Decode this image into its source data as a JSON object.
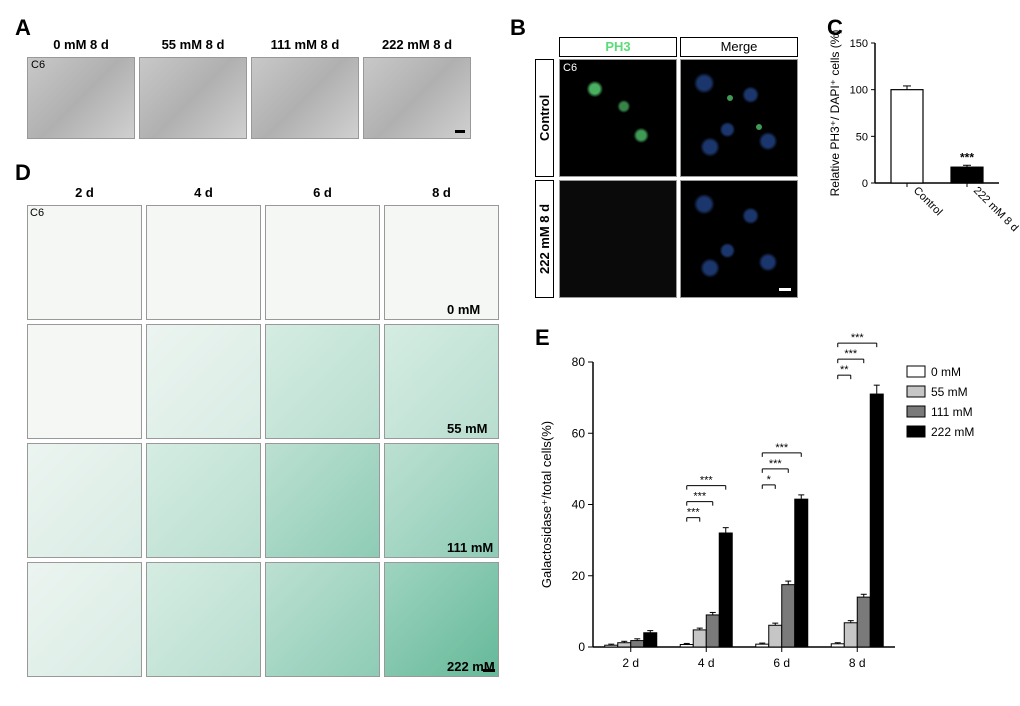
{
  "panelA": {
    "label": "A",
    "cell_line": "C6",
    "conditions": [
      "0 mM  8 d",
      "55 mM  8 d",
      "111 mM  8 d",
      "222 mM  8 d"
    ],
    "image_bg": "#c0c0c0",
    "label_fontsize": 13
  },
  "panelB": {
    "label": "B",
    "cell_line": "C6",
    "col_headers": [
      "PH3",
      "Merge"
    ],
    "ph3_color": "#5cdc78",
    "row_labels": [
      "Control",
      "222 mM  8 d"
    ],
    "bg": "#000000"
  },
  "panelC": {
    "label": "C",
    "type": "bar",
    "ylabel": "Relative PH3⁺/ DAPI⁺ cells (%)",
    "ylim": [
      0,
      150
    ],
    "yticks": [
      0,
      50,
      100,
      150
    ],
    "categories": [
      "Control",
      "222 mM  8 d"
    ],
    "values": [
      100,
      17
    ],
    "errors": [
      4,
      2
    ],
    "bar_colors": [
      "#ffffff",
      "#000000"
    ],
    "bar_border": "#000000",
    "sig_label": "***",
    "label_fontsize": 12,
    "tick_fontsize": 11
  },
  "panelD": {
    "label": "D",
    "cell_line": "C6",
    "col_headers": [
      "2 d",
      "4 d",
      "6 d",
      "8 d"
    ],
    "row_labels": [
      "0 mM",
      "55 mM",
      "111 mM",
      "222 mM"
    ],
    "intensity_map": [
      [
        0,
        0,
        0,
        0
      ],
      [
        0,
        1,
        2,
        2
      ],
      [
        1,
        2,
        3,
        3
      ],
      [
        1,
        2,
        3,
        4
      ]
    ],
    "stain_colors": [
      "#f5f7f5",
      "#d8ece4",
      "#b8ded0",
      "#8eccb6",
      "#66b99a"
    ]
  },
  "panelE": {
    "label": "E",
    "type": "grouped-bar",
    "ylabel": "Galactosidase⁺/total cells(%)",
    "ylim": [
      0,
      80
    ],
    "yticks": [
      0,
      20,
      40,
      60,
      80
    ],
    "x_groups": [
      "2 d",
      "4 d",
      "6 d",
      "8 d"
    ],
    "series": [
      {
        "name": "0 mM",
        "color": "#ffffff",
        "values": [
          0.5,
          0.7,
          0.8,
          0.9
        ],
        "errors": [
          0.3,
          0.3,
          0.3,
          0.3
        ]
      },
      {
        "name": "55 mM",
        "color": "#c6c6c6",
        "values": [
          1.2,
          4.8,
          6.1,
          6.8
        ],
        "errors": [
          0.4,
          0.5,
          0.6,
          0.6
        ]
      },
      {
        "name": "111 mM",
        "color": "#7a7a7a",
        "values": [
          1.8,
          9.0,
          17.5,
          14.0
        ],
        "errors": [
          0.5,
          0.7,
          1.0,
          0.8
        ]
      },
      {
        "name": "222 mM",
        "color": "#000000",
        "values": [
          4.0,
          32.0,
          41.5,
          71.0
        ],
        "errors": [
          0.6,
          1.5,
          1.2,
          2.5
        ]
      }
    ],
    "sig_annotations": [
      {
        "group": "4 d",
        "pairs": [
          {
            "from": 0,
            "to": 1,
            "label": "***"
          },
          {
            "from": 0,
            "to": 2,
            "label": "***"
          },
          {
            "from": 0,
            "to": 3,
            "label": "***"
          }
        ]
      },
      {
        "group": "6 d",
        "pairs": [
          {
            "from": 0,
            "to": 1,
            "label": "*"
          },
          {
            "from": 0,
            "to": 2,
            "label": "***"
          },
          {
            "from": 0,
            "to": 3,
            "label": "***"
          }
        ]
      },
      {
        "group": "8 d",
        "pairs": [
          {
            "from": 0,
            "to": 1,
            "label": "**"
          },
          {
            "from": 0,
            "to": 2,
            "label": "***"
          },
          {
            "from": 0,
            "to": 3,
            "label": "***"
          }
        ]
      }
    ],
    "bar_border": "#000000",
    "axis_color": "#000000",
    "label_fontsize": 13,
    "tick_fontsize": 12,
    "legend_position": "top-right"
  }
}
